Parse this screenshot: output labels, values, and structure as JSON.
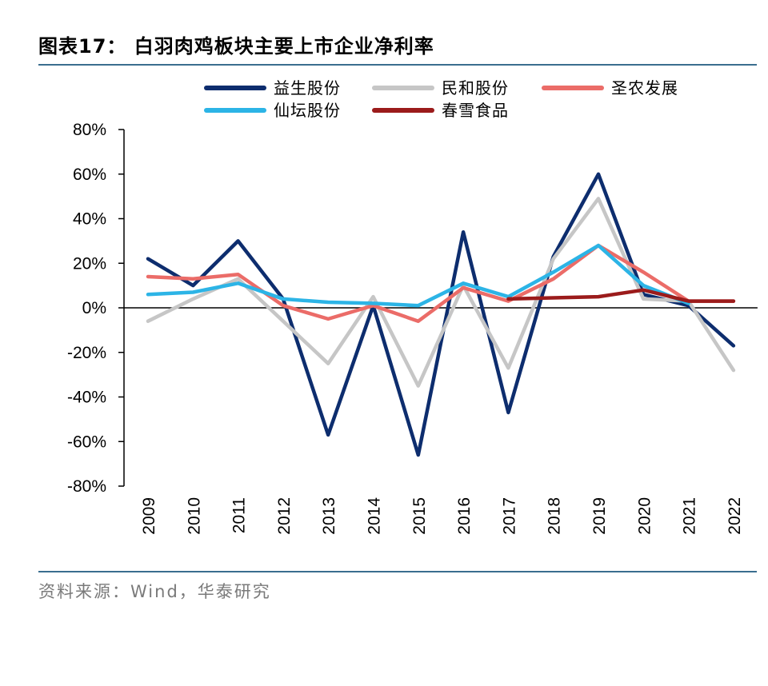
{
  "title": "图表17：  白羽肉鸡板块主要上市企业净利率",
  "source": "资料来源：Wind，华泰研究",
  "chart_data": {
    "type": "line",
    "categories": [
      "2009",
      "2010",
      "2011",
      "2012",
      "2013",
      "2014",
      "2015",
      "2016",
      "2017",
      "2018",
      "2019",
      "2020",
      "2021",
      "2022"
    ],
    "ylim": [
      -80,
      80
    ],
    "yticks": [
      80,
      60,
      40,
      20,
      0,
      -20,
      -40,
      -60,
      -80
    ],
    "ytick_labels": [
      "80%",
      "60%",
      "40%",
      "20%",
      "0%",
      "-20%",
      "-40%",
      "-60%",
      "-80%"
    ],
    "series": [
      {
        "name": "益生股份",
        "color": "#0d2d6e",
        "values": [
          22,
          10,
          30,
          4,
          -57,
          1,
          -66,
          34,
          -47,
          23,
          60,
          6,
          1,
          -17
        ]
      },
      {
        "name": "民和股份",
        "color": "#c6c6c6",
        "values": [
          -6,
          4,
          13,
          -6,
          -25,
          5,
          -35,
          10,
          -27,
          22,
          49,
          4,
          3,
          -28
        ]
      },
      {
        "name": "圣农发展",
        "color": "#eb6c68",
        "values": [
          14,
          13,
          15,
          1,
          -5,
          1,
          -6,
          9,
          3,
          13,
          28,
          16,
          3,
          3
        ]
      },
      {
        "name": "仙坛股份",
        "color": "#2cb4e6",
        "values": [
          6,
          7,
          11,
          4,
          2.5,
          2,
          1,
          11,
          5,
          16,
          28,
          10,
          2,
          null
        ]
      },
      {
        "name": "春雪食品",
        "color": "#9b1b1b",
        "values": [
          null,
          null,
          null,
          null,
          null,
          null,
          null,
          null,
          4,
          4.5,
          5,
          8,
          3,
          3
        ]
      }
    ],
    "legend_position": "top",
    "grid": false
  }
}
